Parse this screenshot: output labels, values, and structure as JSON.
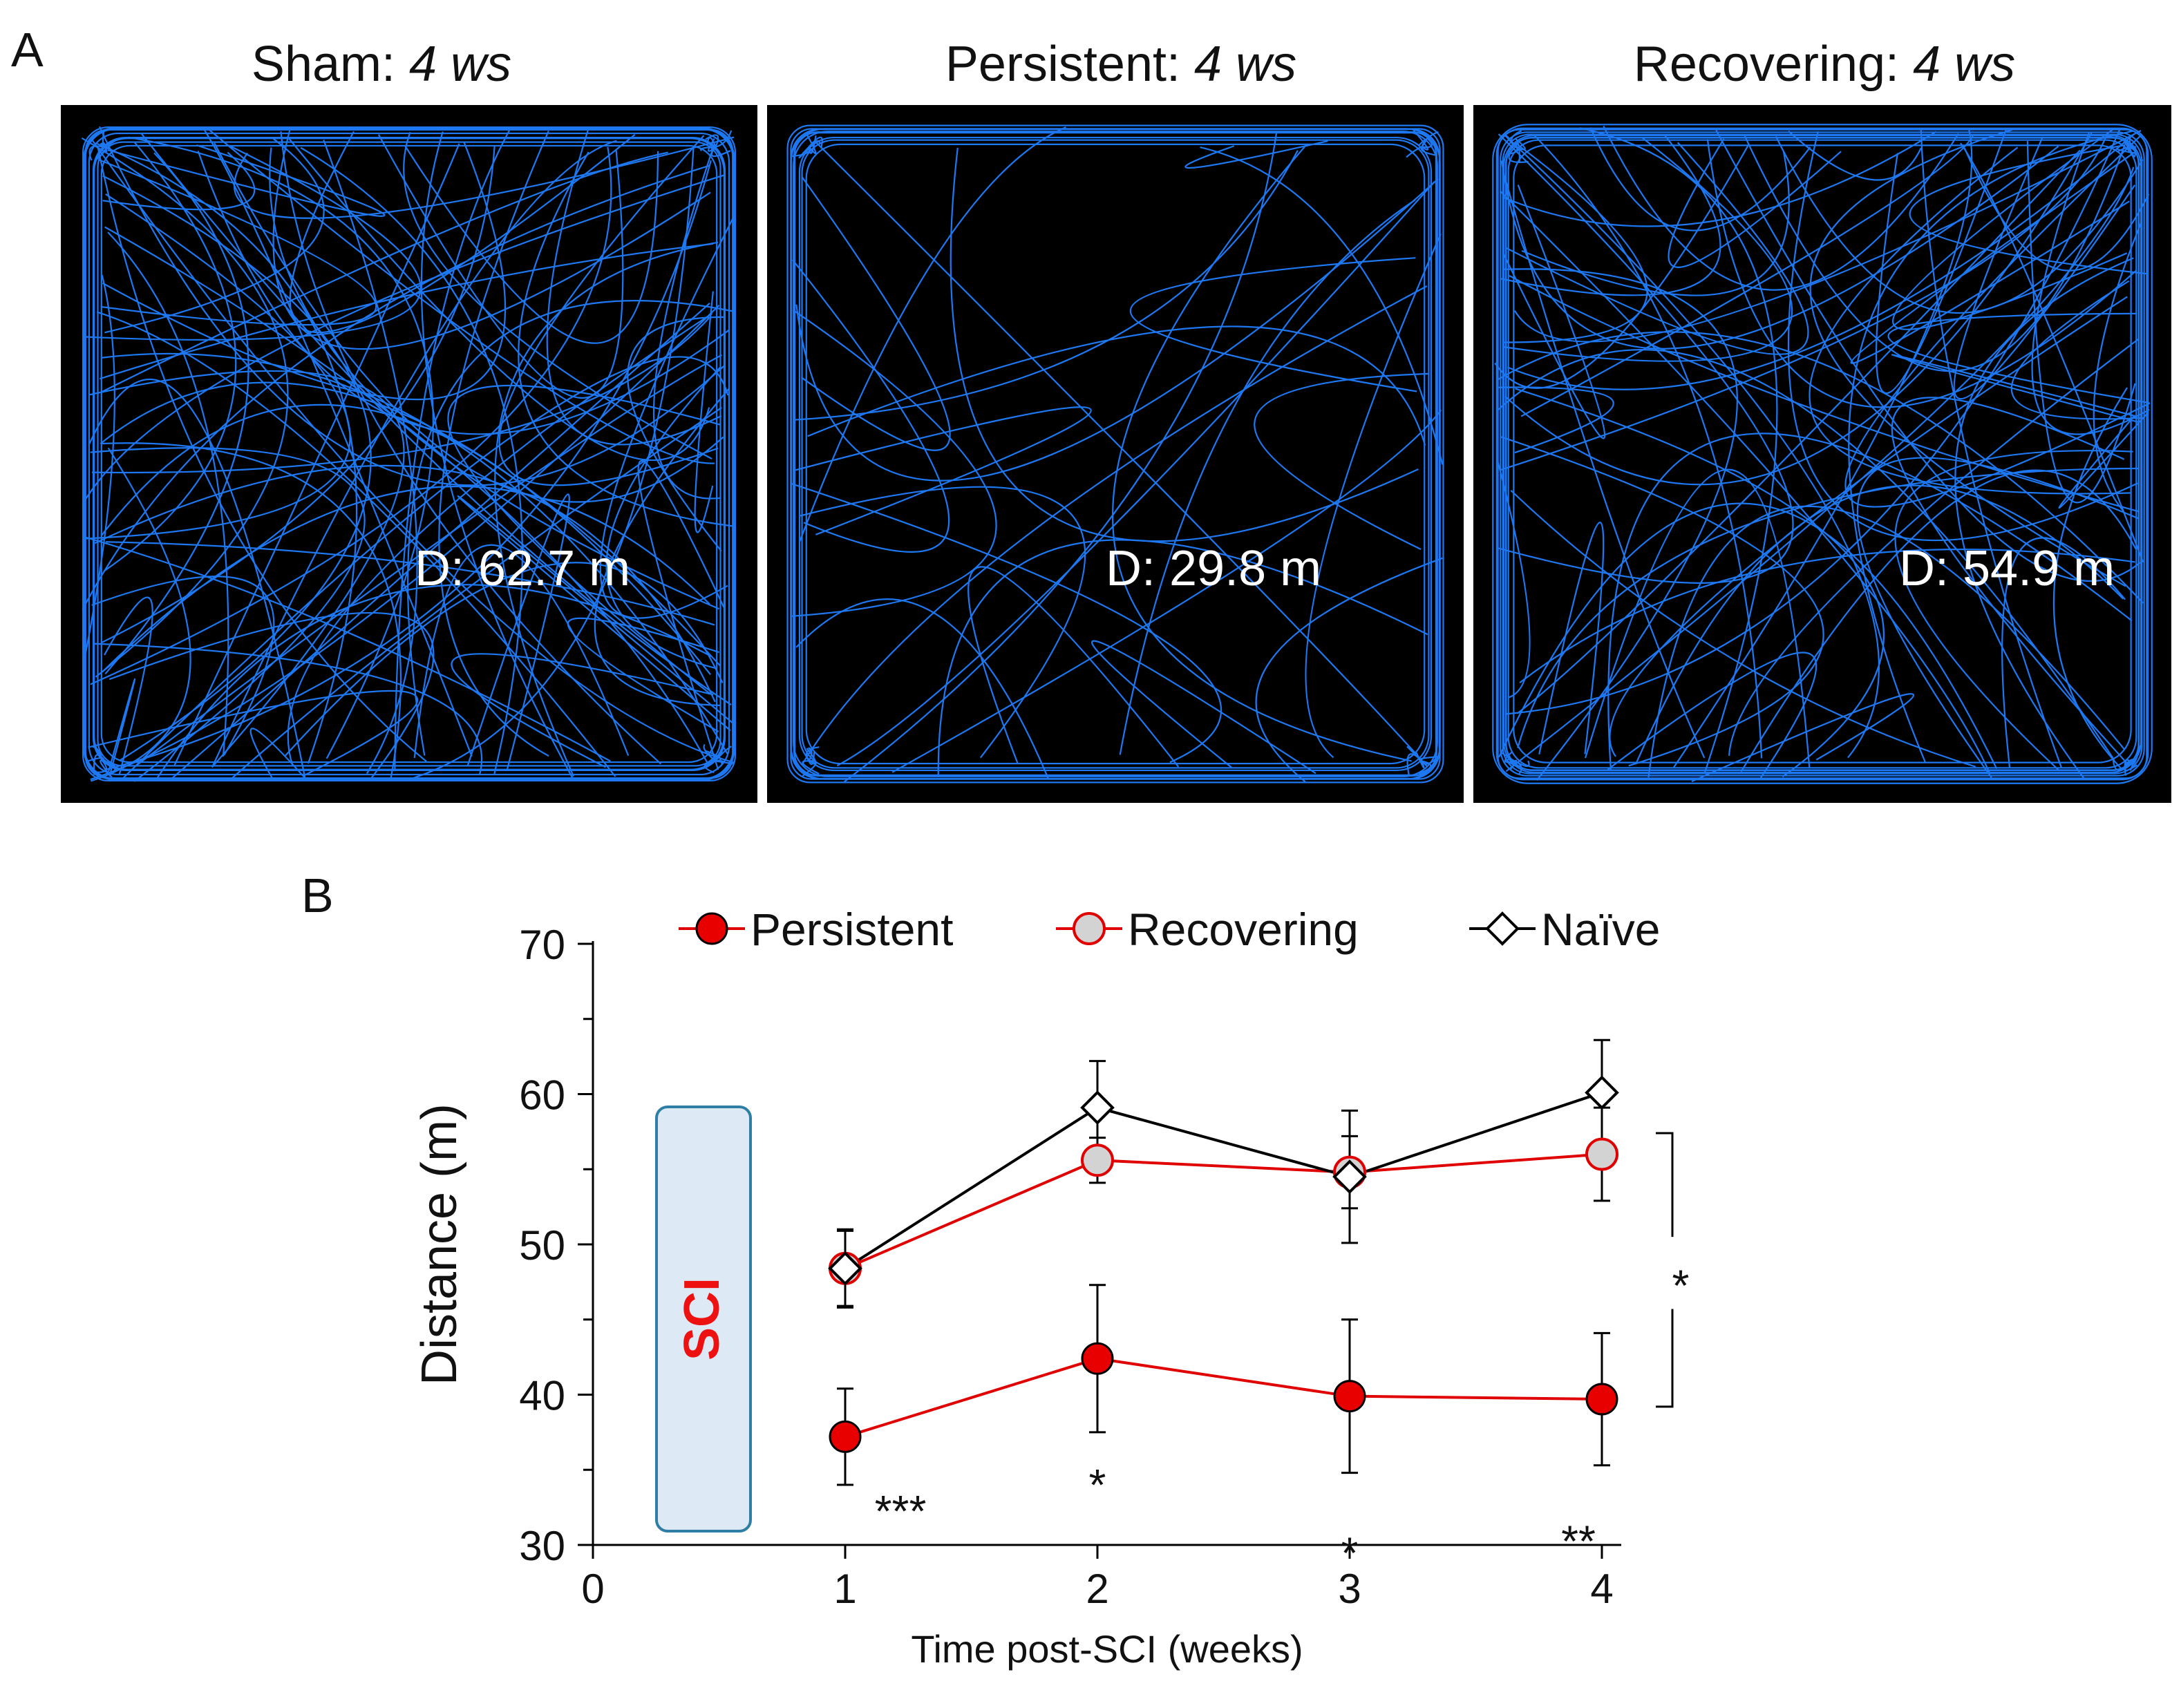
{
  "panel_a": {
    "letter": "A",
    "tracks": [
      {
        "group": "Sham:",
        "time": "4 ws",
        "distance_label": "D: 62.7 m",
        "density": 95,
        "seed": 11
      },
      {
        "group": "Persistent:",
        "time": "4 ws",
        "distance_label": "D: 29.8 m",
        "density": 28,
        "seed": 29
      },
      {
        "group": "Recovering:",
        "time": "4 ws",
        "distance_label": "D: 54.9 m",
        "density": 80,
        "seed": 47
      }
    ],
    "track_color": "#1f7fff"
  },
  "panel_b": {
    "letter": "B"
  },
  "chart_data": {
    "type": "line",
    "title": "",
    "xlabel": "Time post-SCI (weeks)",
    "ylabel": "Distance (m)",
    "xlim": [
      0,
      4
    ],
    "ylim": [
      30,
      70
    ],
    "x_ticks": [
      0,
      1,
      2,
      3,
      4
    ],
    "y_ticks": [
      30,
      40,
      50,
      60,
      70
    ],
    "series": [
      {
        "name": "Persistent",
        "color": "#e00000",
        "marker": "circle",
        "fill": "#e80000",
        "x": [
          1,
          2,
          3,
          4
        ],
        "values": [
          37.2,
          42.4,
          39.9,
          39.7
        ],
        "errors": [
          3.2,
          4.9,
          5.1,
          4.4
        ]
      },
      {
        "name": "Recovering",
        "color": "#e00000",
        "marker": "circle",
        "fill": "#d3d3d3",
        "x": [
          1,
          2,
          3,
          4
        ],
        "values": [
          48.4,
          55.6,
          54.8,
          56.0
        ],
        "errors": [
          2.5,
          1.5,
          2.4,
          3.1
        ]
      },
      {
        "name": "Naïve",
        "color": "#000000",
        "marker": "diamond",
        "fill": "#ffffff",
        "x": [
          1,
          2,
          3,
          4
        ],
        "values": [
          48.4,
          59.1,
          54.5,
          60.1
        ],
        "errors": [
          2.6,
          3.1,
          4.4,
          3.5
        ]
      }
    ],
    "annotations": {
      "sci_label": "SCI",
      "significance": [
        {
          "x": 1,
          "text": "***"
        },
        {
          "x": 2,
          "text": "*"
        },
        {
          "x": 3,
          "text": "*"
        },
        {
          "x": 4,
          "text": "**"
        }
      ],
      "bracket_text": "*"
    },
    "legend": "top"
  }
}
